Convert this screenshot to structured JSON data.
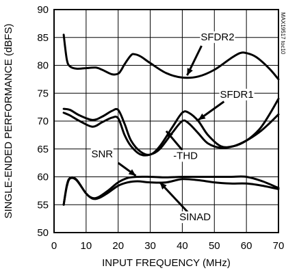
{
  "chart_data": {
    "type": "line",
    "title": "",
    "xlabel": "INPUT FREQUENCY (MHz)",
    "ylabel": "SINGLE-ENDED PERFORMANCE (dBFS)",
    "xlim": [
      0,
      70
    ],
    "ylim": [
      50,
      90
    ],
    "xticks": [
      0,
      10,
      20,
      30,
      40,
      50,
      60,
      70
    ],
    "yticks": [
      50,
      55,
      60,
      65,
      70,
      75,
      80,
      85,
      90
    ],
    "grid": true,
    "watermark": "MAX19517 toc10",
    "series": [
      {
        "name": "SFDR2",
        "x": [
          3,
          4,
          5,
          7,
          10,
          13,
          15,
          18,
          20,
          21,
          22,
          24,
          25,
          27,
          30,
          35,
          40,
          45,
          50,
          55,
          58,
          60,
          63,
          67,
          70
        ],
        "y": [
          85.5,
          81.0,
          79.8,
          79.4,
          79.5,
          79.6,
          79.2,
          78.4,
          78.5,
          79.2,
          80.2,
          81.8,
          82.0,
          81.6,
          80.4,
          78.6,
          77.8,
          78.0,
          79.2,
          81.2,
          82.2,
          82.2,
          81.5,
          79.5,
          77.5
        ],
        "label": {
          "text": "SFDR2",
          "x": 51,
          "y": 84.5
        },
        "pointer": {
          "from": [
            46,
            83.5
          ],
          "to": [
            41.5,
            78.2
          ]
        }
      },
      {
        "name": "SFDR1",
        "x": [
          3,
          5,
          8,
          12,
          15,
          18,
          20,
          22,
          24,
          27,
          30,
          33,
          37,
          40,
          42,
          45,
          48,
          52,
          56,
          60,
          64,
          67,
          70
        ],
        "y": [
          72.2,
          72.0,
          71.0,
          70.2,
          70.8,
          71.8,
          72.0,
          69.5,
          66.5,
          64.5,
          64.0,
          65.5,
          69.0,
          71.5,
          71.5,
          70.0,
          67.5,
          65.5,
          65.5,
          66.5,
          68.5,
          71.0,
          74.0
        ],
        "label": {
          "text": "SFDR1",
          "x": 57,
          "y": 74.2
        },
        "pointer": {
          "from": [
            53,
            73.5
          ],
          "to": [
            45,
            70.2
          ]
        }
      },
      {
        "name": "-THD",
        "x": [
          3,
          5,
          8,
          12,
          15,
          18,
          20,
          22,
          24,
          27,
          30,
          33,
          37,
          40,
          42,
          45,
          48,
          52,
          56,
          60,
          64,
          67,
          70
        ],
        "y": [
          71.5,
          71.0,
          70.0,
          69.0,
          69.8,
          70.6,
          70.5,
          67.5,
          65.5,
          64.0,
          64.0,
          65.0,
          68.0,
          70.0,
          69.6,
          67.8,
          66.0,
          65.2,
          65.5,
          66.5,
          68.0,
          69.5,
          71.2
        ],
        "label": {
          "text": "-THD",
          "x": 41,
          "y": 63.2
        },
        "pointer": {
          "from": [
            40,
            64.8
          ],
          "to": [
            35,
            68.2
          ]
        }
      },
      {
        "name": "SNR",
        "x": [
          3,
          4,
          5,
          7,
          10,
          12,
          14,
          17,
          20,
          23,
          26,
          30,
          35,
          40,
          45,
          50,
          55,
          60,
          65,
          70
        ],
        "y": [
          55.0,
          58.5,
          59.8,
          59.5,
          57.0,
          56.2,
          56.4,
          57.6,
          59.0,
          59.8,
          60.0,
          60.0,
          59.9,
          60.0,
          60.0,
          60.0,
          60.0,
          60.0,
          59.2,
          58.0
        ],
        "label": {
          "text": "SNR",
          "x": 15,
          "y": 63.5
        },
        "pointer": {
          "from": [
            20,
            62.5
          ],
          "to": [
            25.5,
            60.2
          ]
        }
      },
      {
        "name": "SINAD",
        "x": [
          3,
          4,
          5,
          7,
          10,
          12,
          14,
          17,
          20,
          23,
          26,
          30,
          35,
          40,
          45,
          50,
          55,
          60,
          65,
          70
        ],
        "y": [
          55.0,
          58.3,
          59.7,
          59.4,
          57.0,
          56.1,
          56.2,
          57.2,
          58.4,
          59.0,
          59.2,
          59.0,
          59.0,
          59.6,
          59.4,
          59.0,
          58.8,
          58.8,
          58.4,
          57.8
        ],
        "label": {
          "text": "SINAD",
          "x": 44,
          "y": 52.2
        },
        "pointer": {
          "from": [
            42,
            53.5
          ],
          "to": [
            33,
            59.0
          ]
        }
      }
    ]
  }
}
